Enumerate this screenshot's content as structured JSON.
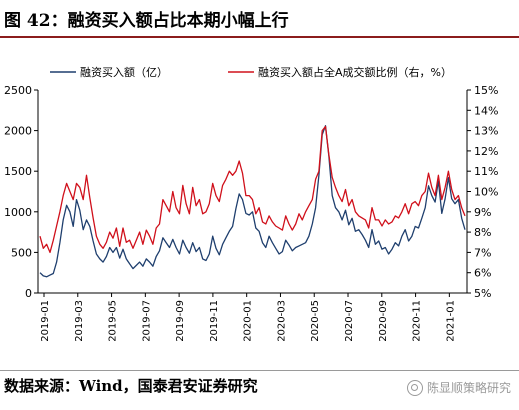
{
  "header": {
    "title": "图 42：融资买入额占比本期小幅上行"
  },
  "footer": {
    "source": "数据来源：Wind，国泰君安证券研究",
    "watermark": "陈显顺策略研究"
  },
  "chart_data": {
    "type": "line",
    "x_tick_labels": [
      "2019-01",
      "2019-03",
      "2019-05",
      "2019-07",
      "2019-09",
      "2019-11",
      "2020-01",
      "2020-03",
      "2020-05",
      "2020-07",
      "2020-09",
      "2020-11",
      "2021-01"
    ],
    "ylim_left": [
      0,
      2500
    ],
    "yticks_left": [
      "0",
      "500",
      "1000",
      "1500",
      "2000",
      "2500"
    ],
    "ylim_right": [
      5,
      15
    ],
    "yticks_right": [
      "5%",
      "6%",
      "7%",
      "8%",
      "9%",
      "10%",
      "11%",
      "12%",
      "13%",
      "14%",
      "15%"
    ],
    "grid": false,
    "legend_position": "top",
    "series": [
      {
        "name": "融资买入额（亿）",
        "axis": "left",
        "color": "#1f3f6e",
        "values": [
          250,
          210,
          200,
          220,
          240,
          380,
          620,
          900,
          1080,
          1000,
          820,
          1150,
          1020,
          780,
          900,
          820,
          640,
          480,
          420,
          380,
          450,
          560,
          500,
          560,
          430,
          540,
          420,
          360,
          300,
          340,
          380,
          330,
          420,
          380,
          330,
          450,
          520,
          680,
          620,
          560,
          660,
          560,
          480,
          650,
          560,
          490,
          620,
          510,
          560,
          420,
          400,
          480,
          700,
          550,
          470,
          600,
          680,
          760,
          820,
          1040,
          1220,
          1150,
          980,
          960,
          1000,
          800,
          760,
          620,
          560,
          700,
          620,
          550,
          480,
          510,
          650,
          590,
          520,
          560,
          580,
          600,
          620,
          700,
          850,
          1050,
          1450,
          1950,
          2060,
          1680,
          1200,
          1050,
          1000,
          900,
          1020,
          840,
          920,
          760,
          780,
          720,
          650,
          560,
          780,
          600,
          640,
          540,
          560,
          480,
          540,
          620,
          580,
          700,
          780,
          640,
          700,
          820,
          800,
          920,
          1050,
          1320,
          1200,
          1120,
          1380,
          980,
          1160,
          1420,
          1160,
          1100,
          1150,
          920,
          780
        ]
      },
      {
        "name": "融资买入额占全A成交额比例（右，%）",
        "axis": "right",
        "color": "#d0101b",
        "values": [
          7.8,
          7.2,
          7.4,
          7.0,
          7.6,
          8.3,
          9.0,
          9.8,
          10.4,
          10.0,
          9.6,
          10.4,
          10.2,
          9.6,
          10.8,
          9.7,
          8.7,
          7.8,
          7.4,
          7.2,
          7.5,
          8.0,
          7.7,
          8.2,
          7.3,
          8.2,
          7.5,
          7.6,
          7.2,
          7.6,
          8.0,
          7.4,
          8.1,
          7.8,
          7.4,
          8.2,
          8.4,
          9.6,
          9.3,
          9.0,
          10.0,
          9.2,
          8.9,
          10.3,
          9.4,
          8.9,
          10.2,
          9.3,
          9.6,
          8.9,
          9.0,
          9.4,
          10.4,
          9.8,
          9.5,
          10.3,
          10.6,
          11.0,
          10.8,
          11.0,
          11.5,
          10.9,
          9.8,
          9.8,
          9.6,
          8.9,
          9.2,
          8.5,
          8.4,
          8.8,
          8.5,
          8.3,
          8.2,
          8.1,
          8.8,
          8.4,
          8.1,
          8.4,
          8.9,
          8.6,
          9.0,
          9.3,
          9.6,
          10.6,
          11.0,
          13.0,
          13.2,
          11.8,
          10.7,
          10.2,
          9.8,
          9.5,
          10.1,
          9.3,
          9.6,
          9.0,
          8.8,
          8.7,
          8.6,
          8.2,
          9.2,
          8.6,
          8.6,
          8.3,
          8.6,
          8.4,
          8.5,
          8.8,
          8.7,
          9.0,
          9.4,
          8.9,
          9.4,
          9.5,
          9.3,
          9.8,
          10.0,
          10.9,
          10.2,
          9.8,
          10.8,
          9.6,
          10.2,
          11.0,
          10.1,
          9.6,
          9.8,
          9.2,
          8.8
        ]
      }
    ]
  }
}
